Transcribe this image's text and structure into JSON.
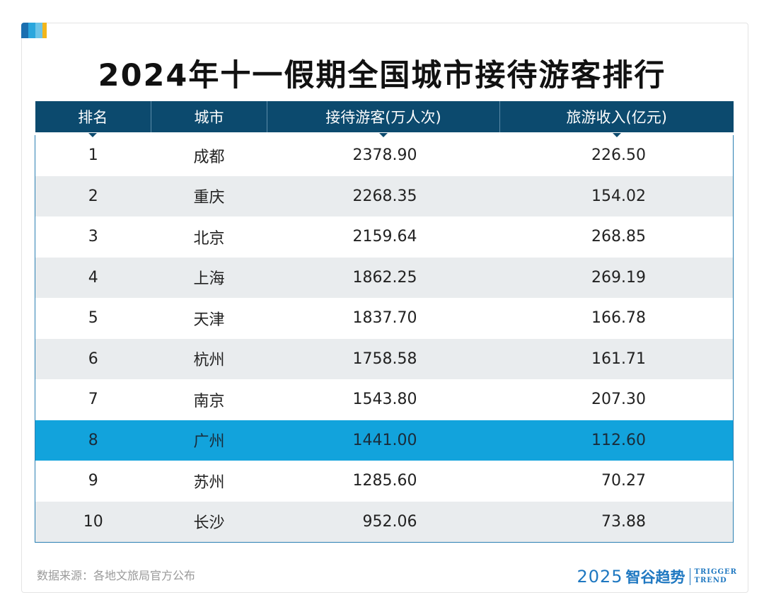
{
  "title": "2024年十一假期全国城市接待游客排行",
  "chart_data": {
    "type": "table",
    "title": "2024年十一假期全国城市接待游客排行",
    "columns": [
      "排名",
      "城市",
      "接待游客(万人次)",
      "旅游收入(亿元)"
    ],
    "rows": [
      [
        "1",
        "成都",
        "2378.90",
        "226.50"
      ],
      [
        "2",
        "重庆",
        "2268.35",
        "154.02"
      ],
      [
        "3",
        "北京",
        "2159.64",
        "268.85"
      ],
      [
        "4",
        "上海",
        "1862.25",
        "269.19"
      ],
      [
        "5",
        "天津",
        "1837.70",
        "166.78"
      ],
      [
        "6",
        "杭州",
        "1758.58",
        "161.71"
      ],
      [
        "7",
        "南京",
        "1543.80",
        "207.30"
      ],
      [
        "8",
        "广州",
        "1441.00",
        "112.60"
      ],
      [
        "9",
        "苏州",
        "1285.60",
        "70.27"
      ],
      [
        "10",
        "长沙",
        "952.06",
        "73.88"
      ]
    ],
    "highlighted_row": 8
  },
  "footer": {
    "source": "数据来源：各地文旅局官方公布",
    "brand_year": "2025",
    "brand_cn": "智谷趋势",
    "brand_en_1": "TRIGGER",
    "brand_en_2": "TREND"
  },
  "colors": {
    "header_bg": "#0c4a6e",
    "highlight": "#12a3dc",
    "stripe": "#e9ecee",
    "brand": "#1f78c1"
  }
}
